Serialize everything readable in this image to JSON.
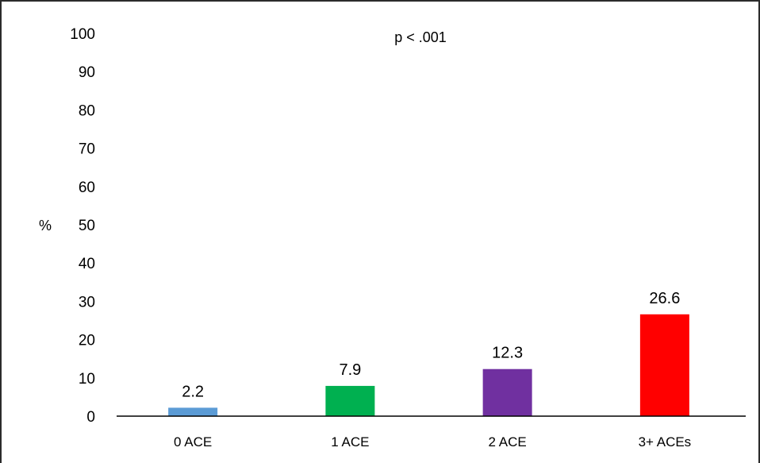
{
  "chart_data": {
    "type": "bar",
    "categories": [
      "0 ACE",
      "1 ACE",
      "2 ACE",
      "3+ ACEs"
    ],
    "values": [
      2.2,
      7.9,
      12.3,
      26.6
    ],
    "data_labels": [
      "2.2",
      "7.9",
      "12.3",
      "26.6"
    ],
    "colors": [
      "#5b9bd5",
      "#00b050",
      "#7030a0",
      "#ff0000"
    ],
    "ylabel": "%",
    "ylim": [
      0,
      100
    ],
    "yticks": [
      0,
      10,
      20,
      30,
      40,
      50,
      60,
      70,
      80,
      90,
      100
    ],
    "annotation": "p < .001",
    "grid": false,
    "legend": "none"
  }
}
